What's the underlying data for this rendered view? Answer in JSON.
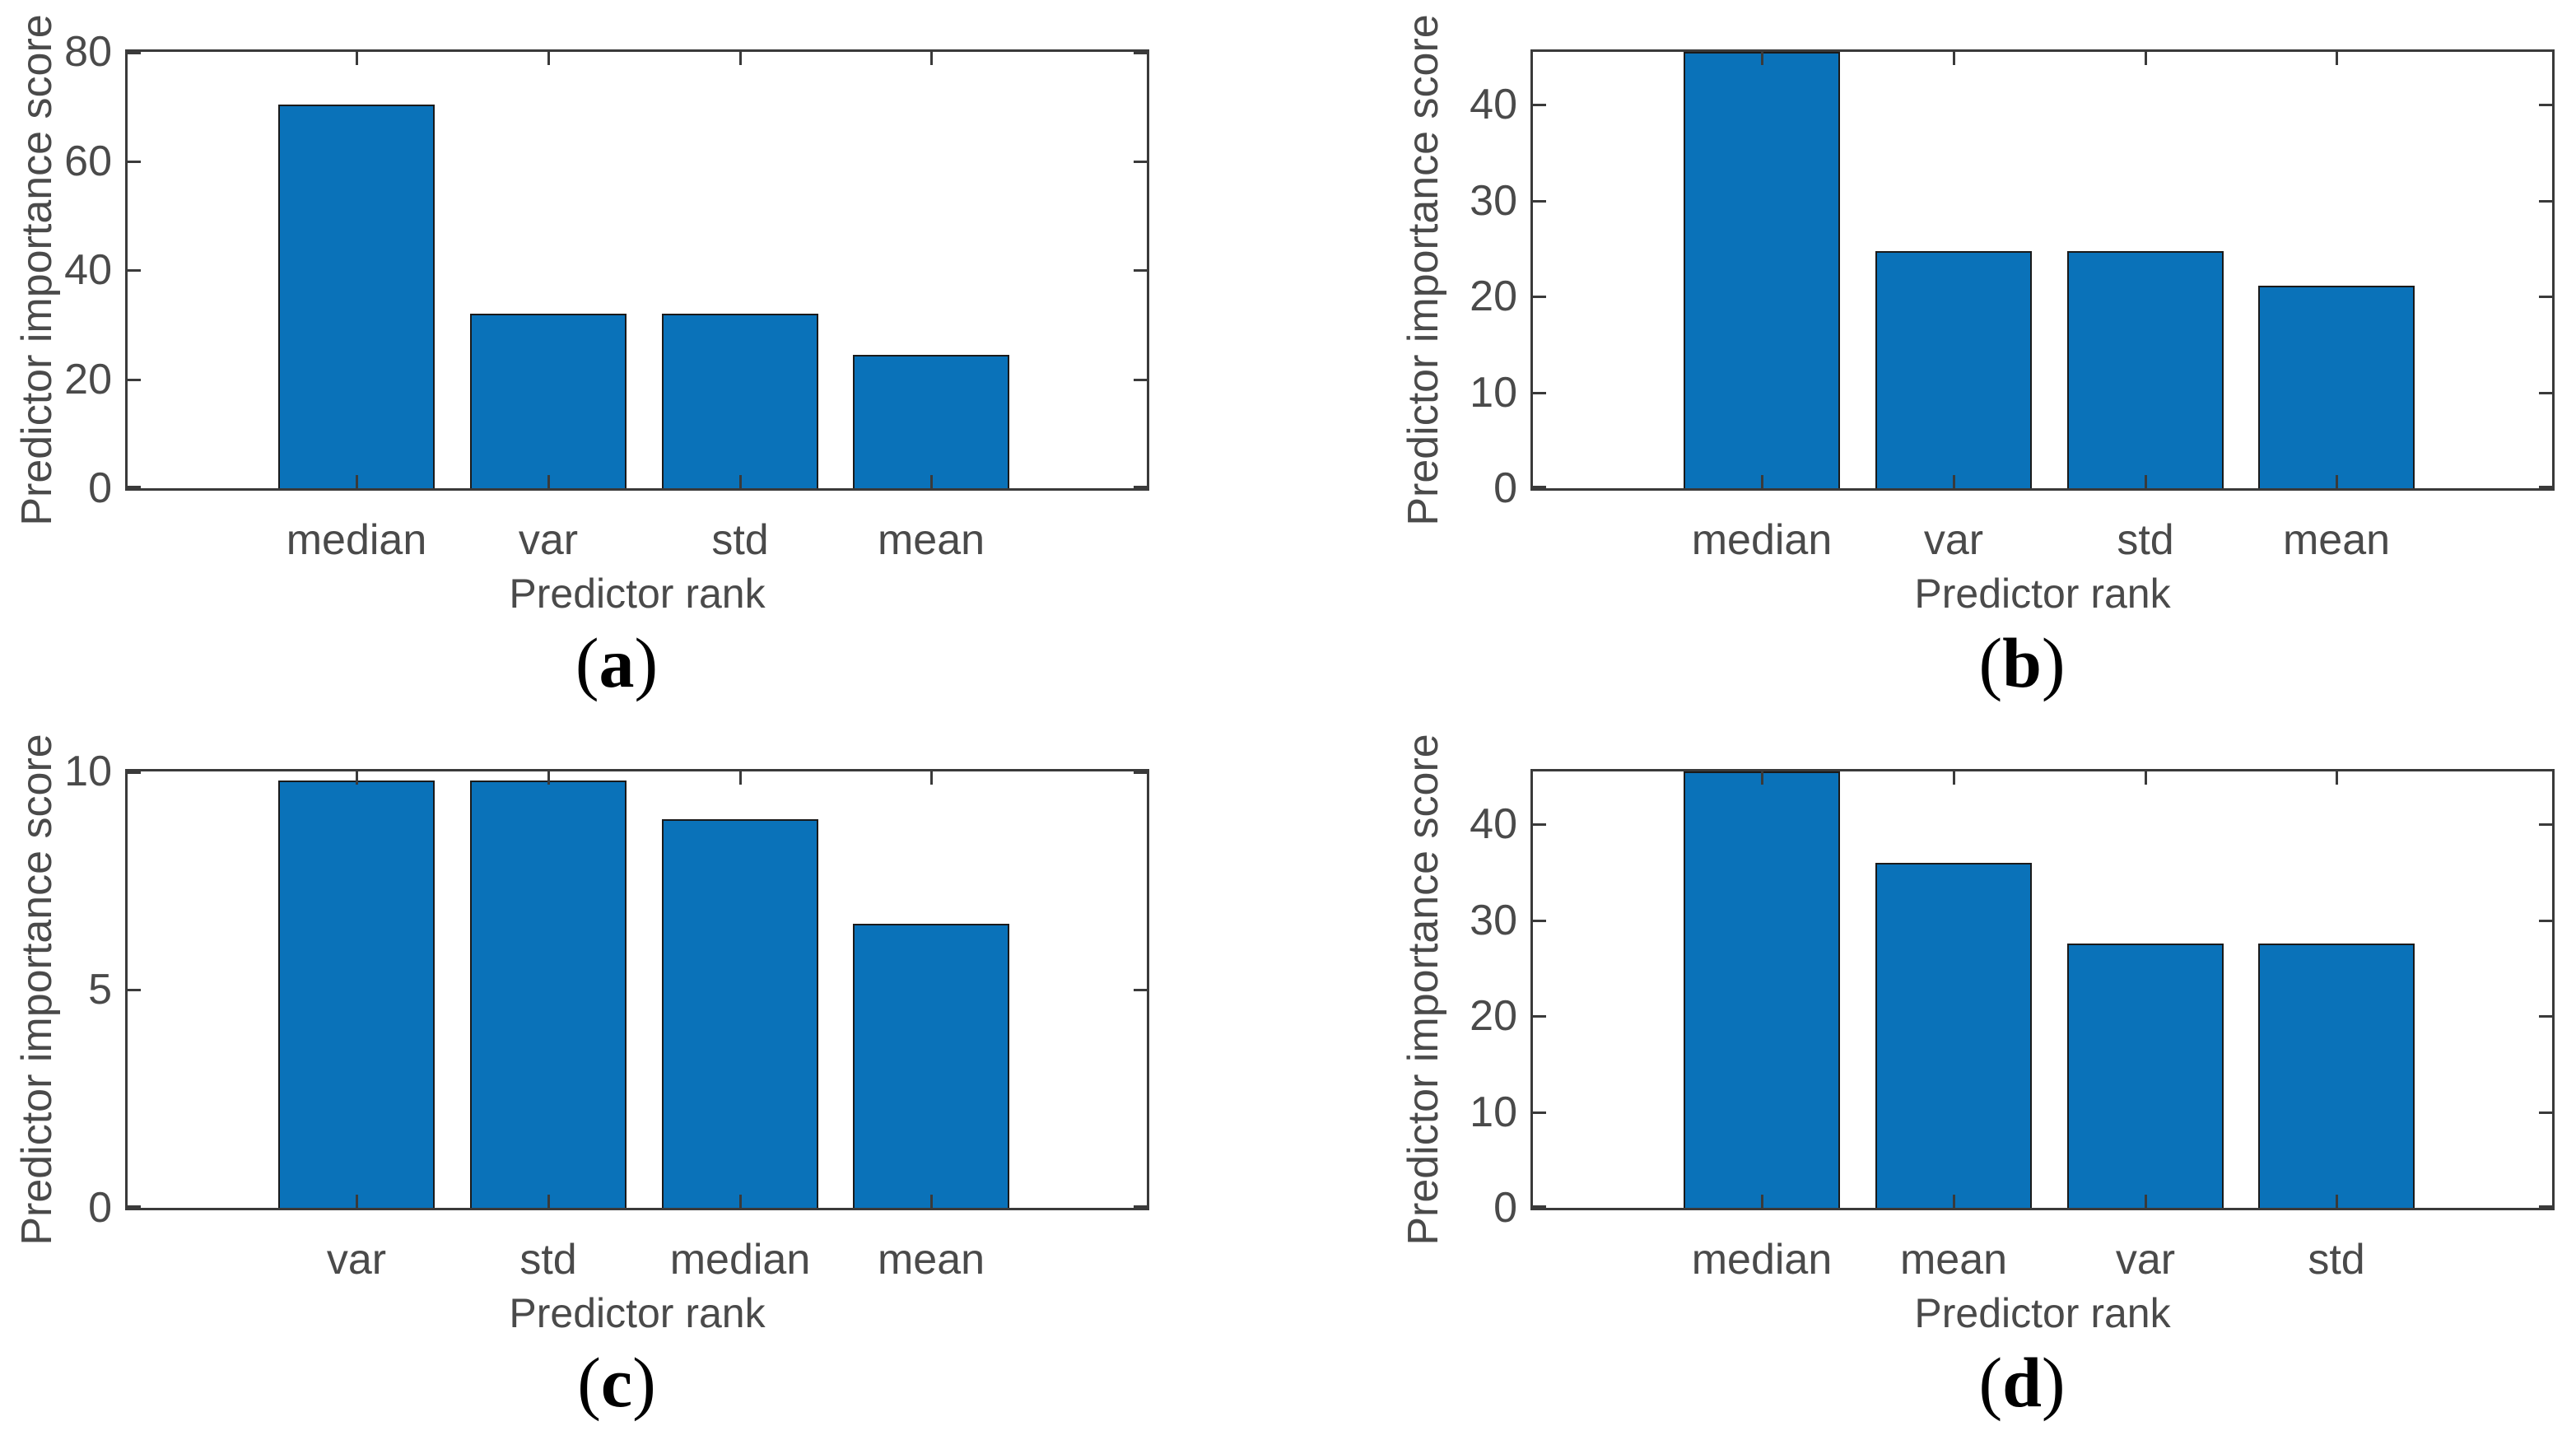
{
  "figure": {
    "background": "#ffffff"
  },
  "style": {
    "bar_color": "#0a72b9",
    "bar_edge_color": "#1a1a1a",
    "axis_color": "#3a3a3a",
    "text_color": "#4a4a4a",
    "letter_color": "#000000"
  },
  "chart_data": [
    {
      "id": "a",
      "type": "bar",
      "panel_label": "(a)",
      "title": "",
      "xlabel": "Predictor rank",
      "ylabel": "Predictor importance score",
      "categories": [
        "median",
        "var",
        "std",
        "mean"
      ],
      "values": [
        70.3,
        32.0,
        32.0,
        24.5
      ],
      "yticks": [
        0,
        20,
        40,
        60,
        80
      ],
      "ylim": [
        0,
        80
      ],
      "grid": false,
      "legend": "none"
    },
    {
      "id": "b",
      "type": "bar",
      "panel_label": "(b)",
      "title": "",
      "xlabel": "Predictor rank",
      "ylabel": "Predictor importance score",
      "categories": [
        "median",
        "var",
        "std",
        "mean"
      ],
      "values": [
        45.5,
        24.7,
        24.7,
        21.1
      ],
      "yticks": [
        0,
        10,
        20,
        30,
        40
      ],
      "ylim": [
        0,
        45.5
      ],
      "grid": false,
      "legend": "none"
    },
    {
      "id": "c",
      "type": "bar",
      "panel_label": "(c)",
      "title": "",
      "xlabel": "Predictor rank",
      "ylabel": "Predictor importance score",
      "categories": [
        "var",
        "std",
        "median",
        "mean"
      ],
      "values": [
        9.8,
        9.8,
        8.9,
        6.5
      ],
      "yticks": [
        0,
        5,
        10
      ],
      "ylim": [
        0,
        10
      ],
      "grid": false,
      "legend": "none"
    },
    {
      "id": "d",
      "type": "bar",
      "panel_label": "(d)",
      "title": "",
      "xlabel": "Predictor rank",
      "ylabel": "Predictor importance score",
      "categories": [
        "median",
        "mean",
        "var",
        "std"
      ],
      "values": [
        45.5,
        36.0,
        27.6,
        27.6
      ],
      "yticks": [
        0,
        10,
        20,
        30,
        40
      ],
      "ylim": [
        0,
        45.5
      ],
      "grid": false,
      "legend": "none"
    }
  ]
}
